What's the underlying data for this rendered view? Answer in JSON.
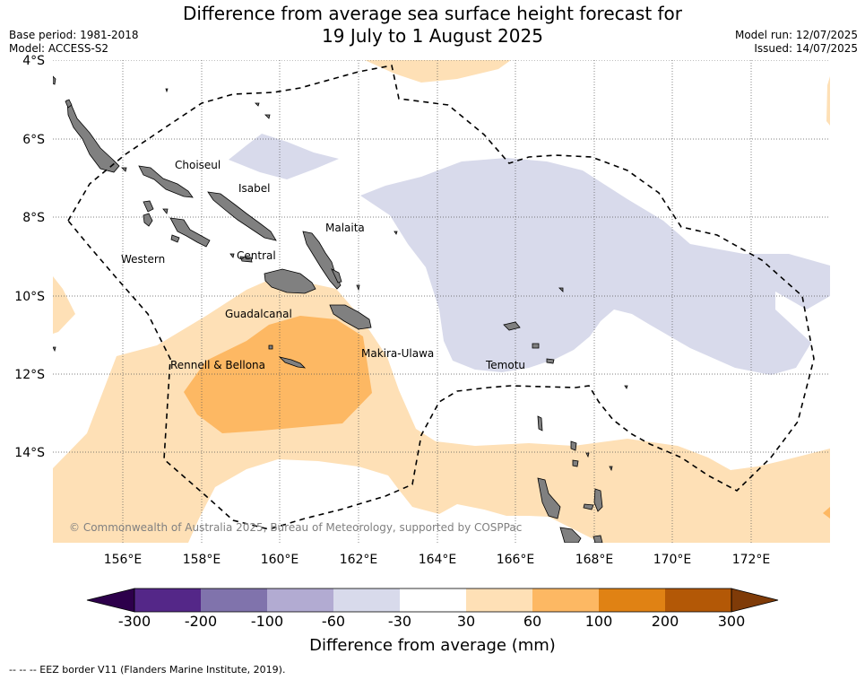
{
  "header": {
    "title_line1": "Difference from average sea surface height forecast for",
    "title_line2": "19 July to 1 August 2025",
    "base_period": "Base period: 1981-2018",
    "model": "Model: ACCESS-S2",
    "model_run": "Model run: 12/07/2025",
    "issued": "Issued: 14/07/2025"
  },
  "map": {
    "lat_ticks": [
      "4°S",
      "6°S",
      "8°S",
      "10°S",
      "12°S",
      "14°S"
    ],
    "lon_ticks": [
      "156°E",
      "158°E",
      "160°E",
      "162°E",
      "164°E",
      "166°E",
      "168°E",
      "170°E",
      "172°E"
    ],
    "grid": true,
    "province_labels": [
      "Choiseul",
      "Isabel",
      "Malaita",
      "Western",
      "Central",
      "Guadalcanal",
      "Makira-Ulawa",
      "Rennell & Bellona",
      "Temotu"
    ],
    "copyright": "© Commonwealth of Australia 2025, Bureau of Meteorology, supported by COSPPac",
    "land_color": "#808080",
    "eez_style": "dashed black"
  },
  "colorbar": {
    "title": "Difference from average (mm)",
    "ticks": [
      "-300",
      "-200",
      "-100",
      "-60",
      "-30",
      "30",
      "60",
      "100",
      "200",
      "300"
    ],
    "colors": [
      "#2d004b",
      "#542788",
      "#8073ac",
      "#b2abd2",
      "#d8daeb",
      "#ffffff",
      "#fee0b6",
      "#fdb863",
      "#e08214",
      "#b35806",
      "#7f3b08"
    ]
  },
  "footnote": "--  --  -- EEZ border V11 (Flanders Marine Institute, 2019)."
}
